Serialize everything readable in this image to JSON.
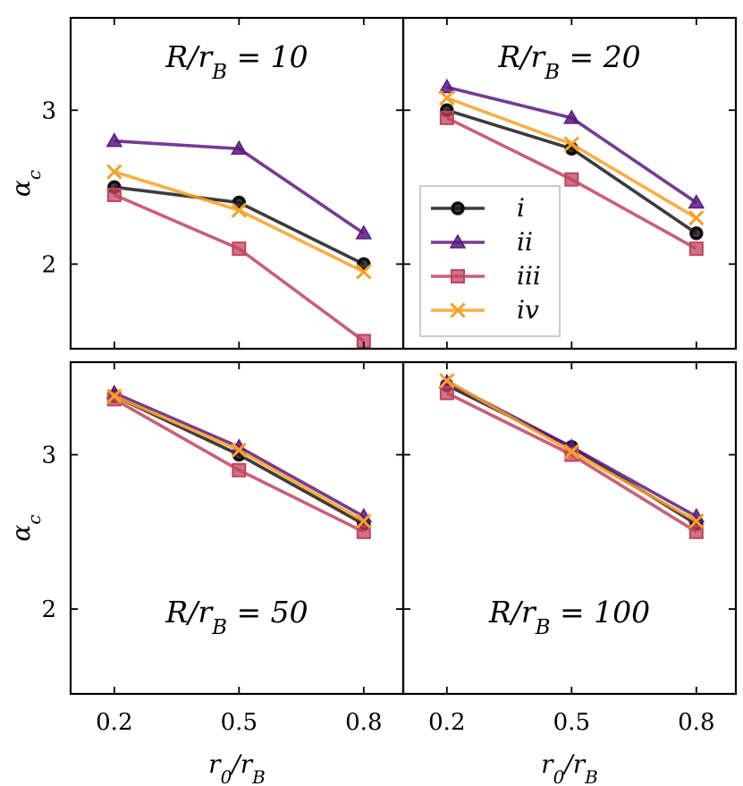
{
  "chart_data": {
    "type": "line",
    "layout": "2x2 grid, shared axes",
    "xlabel": "r_0/r_B",
    "ylabel": "α_c",
    "xticks": [
      0.2,
      0.5,
      0.8
    ],
    "xtick_labels": [
      "0.2",
      "0.5",
      "0.8"
    ],
    "yticks": [
      2,
      3
    ],
    "ytick_labels": [
      "2",
      "3"
    ],
    "ylim": [
      1.45,
      3.6
    ],
    "xlim": [
      0.095,
      0.895
    ],
    "legend": {
      "placement": "upper-right panel, center-left",
      "entries": [
        {
          "label": "i",
          "color": "#1a1a1a",
          "marker": "circle"
        },
        {
          "label": "ii",
          "color": "#5c1a80",
          "marker": "triangle"
        },
        {
          "label": "iii",
          "color": "#c0445e",
          "marker": "square"
        },
        {
          "label": "iv",
          "color": "#f7a024",
          "marker": "x"
        }
      ]
    },
    "panels": [
      {
        "title": "R/r_B = 10",
        "title_position": "top",
        "x": [
          0.2,
          0.5,
          0.8
        ],
        "series": [
          {
            "name": "i",
            "values": [
              2.5,
              2.4,
              2.0
            ]
          },
          {
            "name": "ii",
            "values": [
              2.8,
              2.75,
              2.2
            ]
          },
          {
            "name": "iii",
            "values": [
              2.45,
              2.1,
              1.5
            ]
          },
          {
            "name": "iv",
            "values": [
              2.6,
              2.35,
              1.95
            ]
          }
        ]
      },
      {
        "title": "R/r_B = 20",
        "title_position": "top",
        "x": [
          0.2,
          0.5,
          0.8
        ],
        "series": [
          {
            "name": "i",
            "values": [
              3.0,
              2.75,
              2.2
            ]
          },
          {
            "name": "ii",
            "values": [
              3.15,
              2.95,
              2.4
            ]
          },
          {
            "name": "iii",
            "values": [
              2.95,
              2.55,
              2.1
            ]
          },
          {
            "name": "iv",
            "values": [
              3.08,
              2.78,
              2.3
            ]
          }
        ]
      },
      {
        "title": "R/r_B = 50",
        "title_position": "bottom",
        "x": [
          0.2,
          0.5,
          0.8
        ],
        "series": [
          {
            "name": "i",
            "values": [
              3.38,
              3.0,
              2.55
            ]
          },
          {
            "name": "ii",
            "values": [
              3.4,
              3.05,
              2.6
            ]
          },
          {
            "name": "iii",
            "values": [
              3.36,
              2.9,
              2.5
            ]
          },
          {
            "name": "iv",
            "values": [
              3.38,
              3.03,
              2.57
            ]
          }
        ]
      },
      {
        "title": "R/r_B = 100",
        "title_position": "bottom",
        "x": [
          0.2,
          0.5,
          0.8
        ],
        "series": [
          {
            "name": "i",
            "values": [
              3.45,
              3.05,
              2.55
            ]
          },
          {
            "name": "ii",
            "values": [
              3.47,
              3.05,
              2.6
            ]
          },
          {
            "name": "iii",
            "values": [
              3.4,
              3.0,
              2.5
            ]
          },
          {
            "name": "iv",
            "values": [
              3.48,
              3.02,
              2.57
            ]
          }
        ]
      }
    ]
  }
}
